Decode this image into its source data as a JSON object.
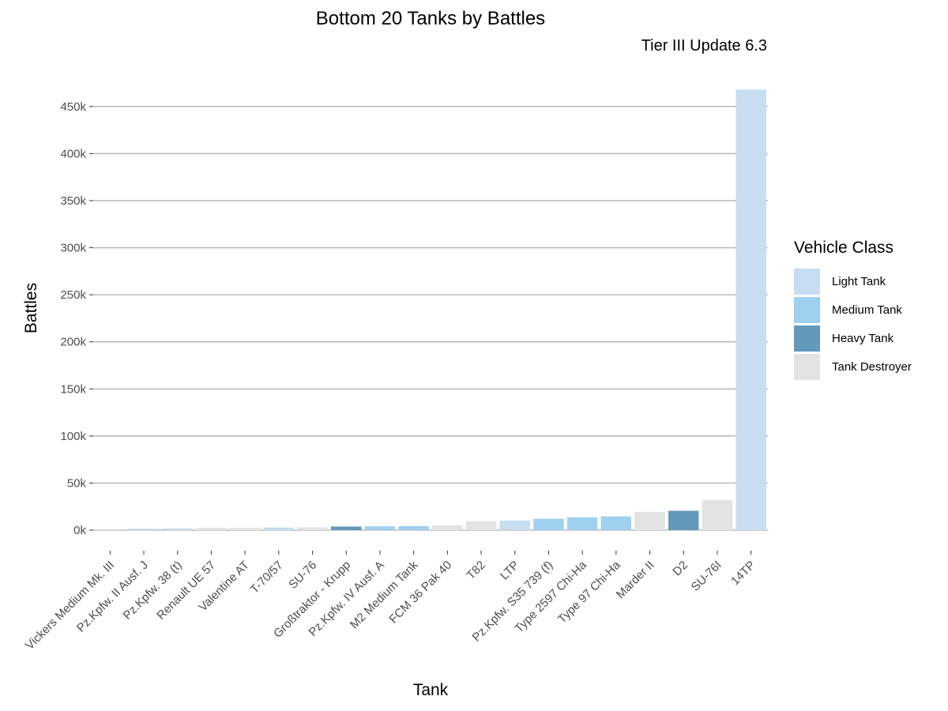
{
  "chart_data": {
    "type": "bar",
    "title": "Bottom 20 Tanks by Battles",
    "subtitle": "Tier III Update 6.3",
    "xlabel": "Tank",
    "ylabel": "Battles",
    "ylim": [
      0,
      470000
    ],
    "yticks": [
      0,
      50000,
      100000,
      150000,
      200000,
      250000,
      300000,
      350000,
      400000,
      450000
    ],
    "ytick_labels": [
      "0k",
      "50k",
      "100k",
      "150k",
      "200k",
      "250k",
      "300k",
      "350k",
      "400k",
      "450k"
    ],
    "grid": true,
    "legend_position": "right",
    "legend_title": "Vehicle Class",
    "classes": [
      {
        "name": "Light Tank",
        "color": "#c6ddf2"
      },
      {
        "name": "Medium Tank",
        "color": "#9fd0ef"
      },
      {
        "name": "Heavy Tank",
        "color": "#6399bb"
      },
      {
        "name": "Tank Destroyer",
        "color": "#e3e3e3"
      }
    ],
    "categories": [
      "Vickers Medium Mk. III",
      "Pz.Kpfw. II Ausf. J",
      "Pz.Kpfw. 38 (t)",
      "Renault UE 57",
      "Valentine AT",
      "T-70/57",
      "SU-76",
      "Großtraktor - Krupp",
      "Pz.Kpfw. IV Ausf. A",
      "M2 Medium Tank",
      "FCM 36 Pak 40",
      "T82",
      "LTP",
      "Pz.Kpfw. S35 739 (f)",
      "Type 2597 Chi-Ha",
      "Type 97 Chi-Ha",
      "Marder II",
      "D2",
      "SU-76I",
      "14TP"
    ],
    "values": [
      800,
      1500,
      1800,
      2300,
      2500,
      2800,
      3000,
      3800,
      4000,
      4200,
      5000,
      9500,
      10000,
      12000,
      13500,
      14500,
      19500,
      20500,
      32000,
      468000
    ],
    "bar_classes": [
      "Light Tank",
      "Light Tank",
      "Light Tank",
      "Tank Destroyer",
      "Tank Destroyer",
      "Light Tank",
      "Tank Destroyer",
      "Heavy Tank",
      "Medium Tank",
      "Medium Tank",
      "Tank Destroyer",
      "Tank Destroyer",
      "Light Tank",
      "Medium Tank",
      "Medium Tank",
      "Medium Tank",
      "Tank Destroyer",
      "Heavy Tank",
      "Tank Destroyer",
      "Light Tank"
    ]
  }
}
